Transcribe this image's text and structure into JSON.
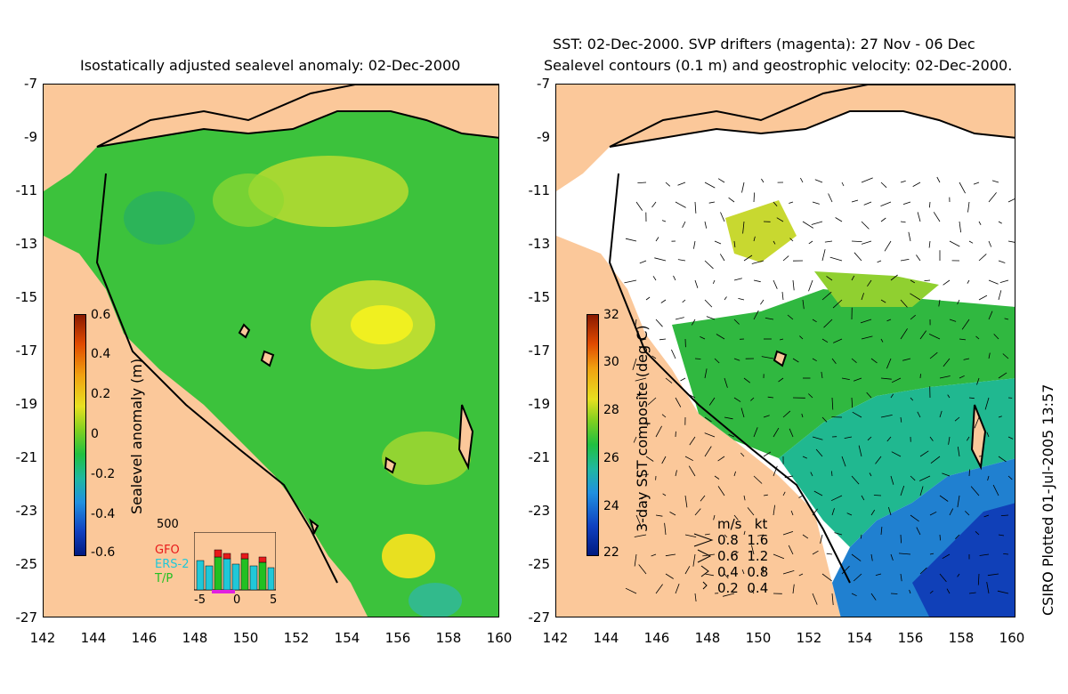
{
  "left_panel": {
    "title": "Isostatically adjusted sealevel anomaly: 02-Dec-2000",
    "colorbar": {
      "label": "Sealevel anomaly (m)",
      "ticks": [
        "0.6",
        "0.4",
        "0.2",
        "0",
        "-0.2",
        "-0.4",
        "-0.6"
      ],
      "range": [
        -0.6,
        0.6
      ]
    },
    "inset": {
      "ymax_label": "500",
      "legend": [
        {
          "name": "GFO",
          "color": "#e8191a"
        },
        {
          "name": "ERS-2",
          "color": "#20c8d8"
        },
        {
          "name": "T/P",
          "color": "#22c022"
        }
      ],
      "x_ticks": [
        "-5",
        "0",
        "5"
      ]
    }
  },
  "right_panel": {
    "title_line1": "SST: 02-Dec-2000. SVP drifters (magenta): 27 Nov - 06 Dec",
    "title_line2": "Sealevel contours (0.1 m) and geostrophic velocity: 02-Dec-2000.",
    "colorbar": {
      "label": "3-day SST composite (deg C)",
      "ticks": [
        "32",
        "30",
        "28",
        "26",
        "24",
        "22"
      ],
      "range": [
        22,
        32
      ]
    },
    "velocity_scale": {
      "header": "m/s   kt",
      "rows": [
        "0.8  1.6",
        "0.6  1.2",
        "0.4  0.8",
        "0.2  0.4"
      ]
    }
  },
  "axes": {
    "lat_ticks": [
      "-7",
      "-9",
      "-11",
      "-13",
      "-15",
      "-17",
      "-19",
      "-21",
      "-23",
      "-25",
      "-27"
    ],
    "lon_ticks": [
      "142",
      "144",
      "146",
      "148",
      "150",
      "152",
      "154",
      "156",
      "158",
      "160"
    ],
    "lat_range": [
      -27,
      -7
    ],
    "lon_range": [
      142,
      160
    ]
  },
  "credit": "CSIRO Plotted 01-Jul-2005 13:57",
  "colors": {
    "land": "#fbc89a",
    "ocean_mid": "#3cc23c",
    "ocean_high": "#c8e030",
    "cloud": "#ffffff"
  }
}
